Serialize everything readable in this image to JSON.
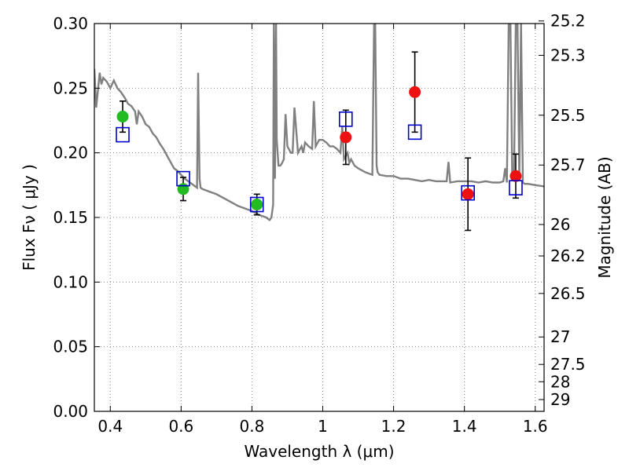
{
  "chart_data": {
    "type": "scatter",
    "xlabel": "Wavelength  λ (μm)",
    "ylabel": "Flux  Fν  ( μJy )",
    "ylabel_right": "Magnitude (AB)",
    "xlim": [
      0.355,
      1.625
    ],
    "ylim": [
      0.0,
      0.3
    ],
    "grid": true,
    "x_ticks": [
      {
        "value": 0.4,
        "label": "0.4"
      },
      {
        "value": 0.6,
        "label": "0.6"
      },
      {
        "value": 0.8,
        "label": "0.8"
      },
      {
        "value": 1.0,
        "label": "1"
      },
      {
        "value": 1.2,
        "label": "1.2"
      },
      {
        "value": 1.4,
        "label": "1.4"
      },
      {
        "value": 1.6,
        "label": "1.6"
      }
    ],
    "y_ticks": [
      {
        "value": 0.0,
        "label": "0.00"
      },
      {
        "value": 0.05,
        "label": "0.05"
      },
      {
        "value": 0.1,
        "label": "0.10"
      },
      {
        "value": 0.15,
        "label": "0.15"
      },
      {
        "value": 0.2,
        "label": "0.20"
      },
      {
        "value": 0.25,
        "label": "0.25"
      },
      {
        "value": 0.3,
        "label": "0.30"
      }
    ],
    "mag_ticks": [
      {
        "mag": 25.2,
        "label": "25.2"
      },
      {
        "mag": 25.3,
        "label": "25.3"
      },
      {
        "mag": 25.5,
        "label": "25.5"
      },
      {
        "mag": 25.7,
        "label": "25.7"
      },
      {
        "mag": 26.0,
        "label": "26"
      },
      {
        "mag": 26.2,
        "label": "26.2"
      },
      {
        "mag": 26.5,
        "label": "26.5"
      },
      {
        "mag": 27.0,
        "label": "27"
      },
      {
        "mag": 27.5,
        "label": "27.5"
      },
      {
        "mag": 28.0,
        "label": "28"
      },
      {
        "mag": 29.0,
        "label": "29"
      }
    ],
    "colors": {
      "sed": "#808080",
      "optical": "#22bb22",
      "nir": "#ee1111",
      "model": "#0000cc",
      "errorbar": "#000000",
      "grid": "#888888"
    },
    "sed_model": {
      "color": "#808080",
      "x": [
        0.355,
        0.36,
        0.362,
        0.37,
        0.375,
        0.38,
        0.39,
        0.4,
        0.41,
        0.42,
        0.43,
        0.44,
        0.45,
        0.46,
        0.47,
        0.475,
        0.48,
        0.49,
        0.5,
        0.51,
        0.52,
        0.53,
        0.54,
        0.55,
        0.56,
        0.57,
        0.58,
        0.59,
        0.6,
        0.61,
        0.62,
        0.63,
        0.64,
        0.645,
        0.648,
        0.652,
        0.655,
        0.66,
        0.68,
        0.7,
        0.72,
        0.74,
        0.76,
        0.78,
        0.8,
        0.82,
        0.84,
        0.85,
        0.855,
        0.86,
        0.862,
        0.865,
        0.868,
        0.87,
        0.875,
        0.88,
        0.885,
        0.89,
        0.895,
        0.9,
        0.91,
        0.915,
        0.92,
        0.93,
        0.94,
        0.945,
        0.95,
        0.96,
        0.97,
        0.975,
        0.98,
        0.99,
        1.0,
        1.01,
        1.02,
        1.03,
        1.04,
        1.05,
        1.055,
        1.06,
        1.07,
        1.075,
        1.08,
        1.09,
        1.1,
        1.12,
        1.14,
        1.145,
        1.148,
        1.152,
        1.155,
        1.16,
        1.18,
        1.2,
        1.22,
        1.24,
        1.26,
        1.28,
        1.3,
        1.32,
        1.34,
        1.35,
        1.355,
        1.36,
        1.38,
        1.4,
        1.42,
        1.44,
        1.46,
        1.48,
        1.5,
        1.51,
        1.515,
        1.52,
        1.525,
        1.53,
        1.535,
        1.54,
        1.545,
        1.55,
        1.555,
        1.56,
        1.565,
        1.57,
        1.58,
        1.6,
        1.625
      ],
      "y": [
        0.265,
        0.235,
        0.24,
        0.262,
        0.253,
        0.258,
        0.255,
        0.25,
        0.256,
        0.25,
        0.247,
        0.243,
        0.238,
        0.236,
        0.232,
        0.222,
        0.232,
        0.228,
        0.222,
        0.22,
        0.215,
        0.212,
        0.207,
        0.203,
        0.198,
        0.193,
        0.188,
        0.186,
        0.183,
        0.18,
        0.178,
        0.176,
        0.174,
        0.173,
        0.262,
        0.18,
        0.173,
        0.172,
        0.17,
        0.168,
        0.165,
        0.162,
        0.159,
        0.157,
        0.155,
        0.152,
        0.15,
        0.148,
        0.15,
        0.16,
        0.3,
        0.18,
        0.3,
        0.21,
        0.19,
        0.19,
        0.192,
        0.195,
        0.23,
        0.205,
        0.2,
        0.2,
        0.235,
        0.2,
        0.205,
        0.2,
        0.208,
        0.205,
        0.203,
        0.24,
        0.205,
        0.21,
        0.21,
        0.208,
        0.205,
        0.205,
        0.203,
        0.2,
        0.22,
        0.195,
        0.2,
        0.192,
        0.195,
        0.19,
        0.188,
        0.185,
        0.183,
        0.3,
        0.3,
        0.19,
        0.185,
        0.183,
        0.182,
        0.182,
        0.18,
        0.18,
        0.179,
        0.178,
        0.179,
        0.178,
        0.178,
        0.178,
        0.193,
        0.177,
        0.178,
        0.178,
        0.178,
        0.177,
        0.178,
        0.177,
        0.177,
        0.178,
        0.188,
        0.177,
        0.3,
        0.3,
        0.18,
        0.18,
        0.3,
        0.3,
        0.178,
        0.3,
        0.177,
        0.176,
        0.176,
        0.175,
        0.174
      ]
    },
    "series": [
      {
        "marker": "circle",
        "color": "#22bb22",
        "points": [
          {
            "x": 0.435,
            "y": 0.228,
            "err": 0.012
          },
          {
            "x": 0.606,
            "y": 0.172,
            "err": 0.009
          },
          {
            "x": 0.814,
            "y": 0.16,
            "err": 0.008
          }
        ]
      },
      {
        "marker": "circle",
        "color": "#ee1111",
        "points": [
          {
            "x": 1.065,
            "y": 0.212,
            "err": 0.021
          },
          {
            "x": 1.26,
            "y": 0.247,
            "err": 0.031
          },
          {
            "x": 1.41,
            "y": 0.168,
            "err": 0.028
          },
          {
            "x": 1.545,
            "y": 0.182,
            "err": 0.017
          }
        ]
      },
      {
        "marker": "open-square",
        "color": "#0000cc",
        "points": [
          {
            "x": 0.435,
            "y": 0.214
          },
          {
            "x": 0.606,
            "y": 0.18
          },
          {
            "x": 0.814,
            "y": 0.16
          },
          {
            "x": 1.065,
            "y": 0.226
          },
          {
            "x": 1.26,
            "y": 0.216
          },
          {
            "x": 1.41,
            "y": 0.169
          },
          {
            "x": 1.545,
            "y": 0.173
          }
        ]
      }
    ]
  }
}
